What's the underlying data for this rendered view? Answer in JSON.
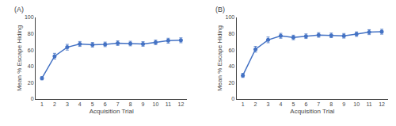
{
  "chart_data": [
    {
      "type": "line",
      "title": "(A)",
      "x": [
        1,
        2,
        3,
        4,
        5,
        6,
        7,
        8,
        9,
        10,
        11,
        12
      ],
      "values": [
        25.5,
        52.5,
        63.5,
        67.5,
        66.5,
        67.0,
        68.5,
        68.0,
        67.5,
        69.5,
        71.5,
        72.0
      ],
      "errors": [
        2.0,
        3.5,
        3.5,
        3.0,
        2.8,
        2.8,
        2.8,
        2.8,
        2.8,
        2.8,
        3.0,
        3.0
      ],
      "xlabel": "Acquisition Trial",
      "ylabel": "Mean % Escape Hiding",
      "xlim": [
        0.5,
        12.5
      ],
      "xticks": [
        1,
        2,
        3,
        4,
        5,
        6,
        7,
        8,
        9,
        10,
        11,
        12
      ],
      "ylim": [
        0,
        100
      ],
      "yticks": [
        0,
        20,
        40,
        60,
        80,
        100
      ],
      "color": "#4472C4",
      "marker": "circle",
      "grid": false
    },
    {
      "type": "line",
      "title": "(B)",
      "x": [
        1,
        2,
        3,
        4,
        5,
        6,
        7,
        8,
        9,
        10,
        11,
        12
      ],
      "values": [
        29.0,
        61.0,
        72.5,
        77.5,
        75.5,
        77.0,
        78.5,
        78.0,
        77.5,
        79.5,
        82.0,
        82.5
      ],
      "errors": [
        2.5,
        3.5,
        3.5,
        3.0,
        2.8,
        2.8,
        2.8,
        2.8,
        2.8,
        2.8,
        3.0,
        3.0
      ],
      "xlabel": "Acquisition Trial",
      "ylabel": "Mean % Escape Hiding",
      "xlim": [
        0.5,
        12.5
      ],
      "xticks": [
        1,
        2,
        3,
        4,
        5,
        6,
        7,
        8,
        9,
        10,
        11,
        12
      ],
      "ylim": [
        0,
        100
      ],
      "yticks": [
        0,
        20,
        40,
        60,
        80,
        100
      ],
      "color": "#4472C4",
      "marker": "circle",
      "grid": false
    }
  ]
}
